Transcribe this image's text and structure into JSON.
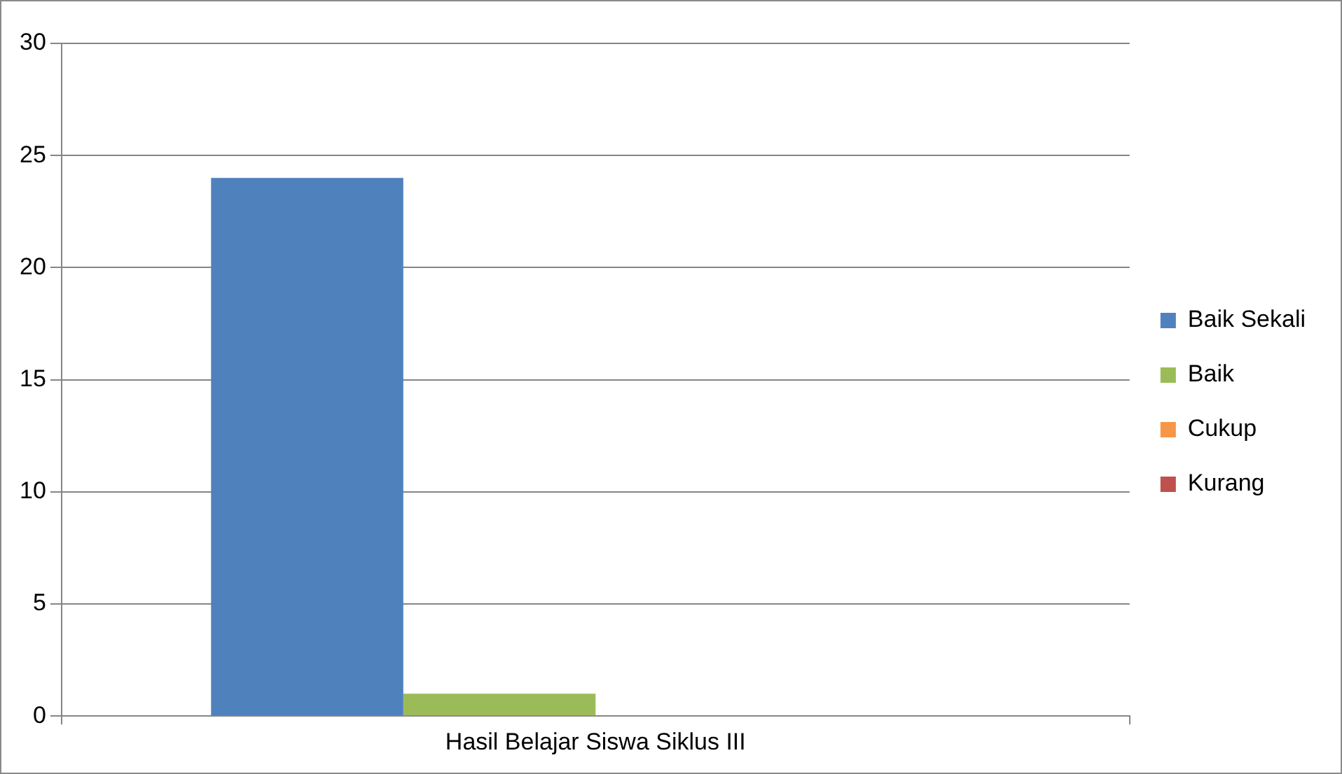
{
  "chart_data": {
    "type": "bar",
    "categories": [
      "Hasil Belajar Siswa Siklus III"
    ],
    "series": [
      {
        "name": "Baik Sekali",
        "color": "#4f81bd",
        "values": [
          24
        ]
      },
      {
        "name": "Baik",
        "color": "#9bbb59",
        "values": [
          1
        ]
      },
      {
        "name": "Cukup",
        "color": "#f79646",
        "values": [
          0
        ]
      },
      {
        "name": "Kurang",
        "color": "#c0504d",
        "values": [
          0
        ]
      }
    ],
    "ylim": [
      0,
      30
    ],
    "yticks": [
      0,
      5,
      10,
      15,
      20,
      25,
      30
    ],
    "grid": "y",
    "legend": "right"
  }
}
